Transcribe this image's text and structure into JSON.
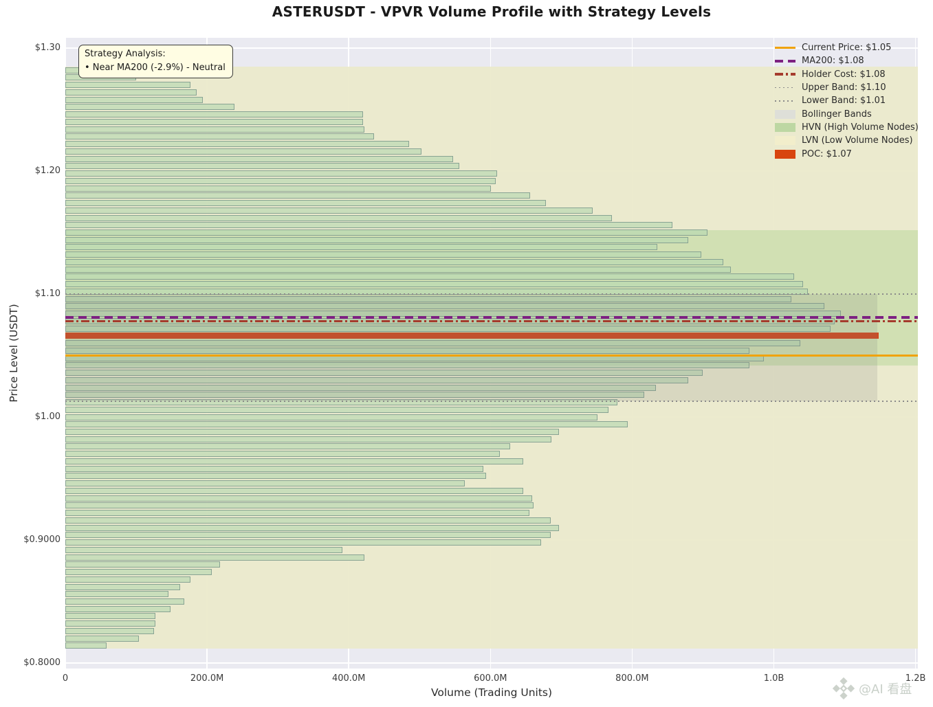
{
  "title": "ASTERUSDT - VPVR Volume Profile with Strategy Levels",
  "axes": {
    "xlabel": "Volume (Trading Units)",
    "ylabel": "Price Level (USDT)",
    "x_ticks": [
      {
        "label": "0",
        "value_M": 0
      },
      {
        "label": "200.0M",
        "value_M": 200
      },
      {
        "label": "400.0M",
        "value_M": 400
      },
      {
        "label": "600.0M",
        "value_M": 600
      },
      {
        "label": "800.0M",
        "value_M": 800
      },
      {
        "label": "1.0B",
        "value_M": 1000
      },
      {
        "label": "1.2B",
        "value_M": 1200
      }
    ],
    "y_ticks": [
      {
        "label": "$1.30",
        "price": 1.3
      },
      {
        "label": "$1.20",
        "price": 1.2
      },
      {
        "label": "$1.10",
        "price": 1.1
      },
      {
        "label": "$1.00",
        "price": 1.0
      },
      {
        "label": "$0.9000",
        "price": 0.9
      },
      {
        "label": "$0.8000",
        "price": 0.8
      }
    ]
  },
  "annotation_box": {
    "line1": "Strategy Analysis:",
    "line2": "• Near MA200 (-2.9%) - Neutral"
  },
  "legend": [
    {
      "label": "Current Price: $1.05",
      "swatch": "line-solid",
      "color": "#f0a30a"
    },
    {
      "label": "MA200: $1.08",
      "swatch": "line-dashed",
      "color": "#7d2182"
    },
    {
      "label": "Holder Cost: $1.08",
      "swatch": "line-dashdot",
      "color": "#a53b2d"
    },
    {
      "label": "Upper Band: $1.10",
      "swatch": "line-dotted",
      "color": "#8a8a8a"
    },
    {
      "label": "Lower Band: $1.01",
      "swatch": "line-dotted",
      "color": "#8a8a8a"
    },
    {
      "label": "Bollinger Bands",
      "swatch": "patch",
      "color": "#dedfd8"
    },
    {
      "label": "HVN (High Volume Nodes)",
      "swatch": "patch",
      "color": "#bdd7a3"
    },
    {
      "label": "LVN (Low Volume Nodes)",
      "swatch": "patch",
      "color": "#f2eecb"
    },
    {
      "label": "POC: $1.07",
      "swatch": "patch",
      "color": "#d8450f"
    }
  ],
  "levels": {
    "current_price": {
      "name": "current-price-line",
      "price": 1.05,
      "color": "#f0a30a",
      "style": "solid",
      "thickness": 3.5
    },
    "ma200": {
      "name": "ma200-line",
      "price": 1.081,
      "color": "#7d2182",
      "style": "dashed",
      "thickness": 3.5
    },
    "holder_cost": {
      "name": "holder-cost-line",
      "price": 1.078,
      "color": "#a53b2d",
      "style": "dashdot",
      "thickness": 2.6
    },
    "upper_band": {
      "name": "upper-band-line",
      "price": 1.1,
      "color": "#8a8a8a",
      "style": "dotted",
      "thickness": 1.8
    },
    "lower_band": {
      "name": "lower-band-line",
      "price": 1.013,
      "color": "#8a8a8a",
      "style": "dotted",
      "thickness": 1.8
    }
  },
  "zones": {
    "lvn": {
      "price_top": 1.285,
      "price_bottom": 0.8115,
      "color": "#ebeacb",
      "opacity": 0.95
    },
    "hvn": {
      "price_top": 1.152,
      "price_bottom": 1.042,
      "color": "#cfdfb2",
      "opacity": 0.97
    },
    "bollinger": {
      "price_top": 1.1,
      "price_bottom": 1.013,
      "x_max_M": 1146,
      "color": "rgba(125,125,125,0.17)"
    }
  },
  "chart_data": {
    "type": "bar",
    "orientation": "horizontal",
    "title": "ASTERUSDT - VPVR Volume Profile with Strategy Levels",
    "xlabel": "Volume (Trading Units)",
    "ylabel": "Price Level (USDT)",
    "xlim_M": [
      0,
      1203
    ],
    "ylim": [
      0.795,
      1.308
    ],
    "grid": true,
    "legend_position": "upper right",
    "bin_size": 0.006,
    "poc": {
      "price": 1.066,
      "volume_M": 1148
    },
    "bars": [
      {
        "price": 1.282,
        "volume_M": 104
      },
      {
        "price": 1.276,
        "volume_M": 100
      },
      {
        "price": 1.27,
        "volume_M": 177
      },
      {
        "price": 1.264,
        "volume_M": 185
      },
      {
        "price": 1.258,
        "volume_M": 194
      },
      {
        "price": 1.252,
        "volume_M": 239
      },
      {
        "price": 1.246,
        "volume_M": 420
      },
      {
        "price": 1.24,
        "volume_M": 420
      },
      {
        "price": 1.234,
        "volume_M": 422
      },
      {
        "price": 1.228,
        "volume_M": 436
      },
      {
        "price": 1.222,
        "volume_M": 485
      },
      {
        "price": 1.216,
        "volume_M": 503
      },
      {
        "price": 1.21,
        "volume_M": 547
      },
      {
        "price": 1.204,
        "volume_M": 556
      },
      {
        "price": 1.198,
        "volume_M": 609
      },
      {
        "price": 1.192,
        "volume_M": 607
      },
      {
        "price": 1.186,
        "volume_M": 601
      },
      {
        "price": 1.18,
        "volume_M": 656
      },
      {
        "price": 1.174,
        "volume_M": 678
      },
      {
        "price": 1.168,
        "volume_M": 744
      },
      {
        "price": 1.162,
        "volume_M": 771
      },
      {
        "price": 1.156,
        "volume_M": 857
      },
      {
        "price": 1.15,
        "volume_M": 906
      },
      {
        "price": 1.144,
        "volume_M": 879
      },
      {
        "price": 1.138,
        "volume_M": 836
      },
      {
        "price": 1.132,
        "volume_M": 898
      },
      {
        "price": 1.126,
        "volume_M": 929
      },
      {
        "price": 1.12,
        "volume_M": 939
      },
      {
        "price": 1.114,
        "volume_M": 1029
      },
      {
        "price": 1.108,
        "volume_M": 1041
      },
      {
        "price": 1.102,
        "volume_M": 1048
      },
      {
        "price": 1.096,
        "volume_M": 1025
      },
      {
        "price": 1.09,
        "volume_M": 1071
      },
      {
        "price": 1.084,
        "volume_M": 1095
      },
      {
        "price": 1.078,
        "volume_M": 1086
      },
      {
        "price": 1.072,
        "volume_M": 1080
      },
      {
        "price": 1.066,
        "volume_M": 1148
      },
      {
        "price": 1.06,
        "volume_M": 1037
      },
      {
        "price": 1.054,
        "volume_M": 966
      },
      {
        "price": 1.048,
        "volume_M": 986
      },
      {
        "price": 1.042,
        "volume_M": 966
      },
      {
        "price": 1.036,
        "volume_M": 900
      },
      {
        "price": 1.03,
        "volume_M": 879
      },
      {
        "price": 1.024,
        "volume_M": 834
      },
      {
        "price": 1.018,
        "volume_M": 817
      },
      {
        "price": 1.012,
        "volume_M": 779
      },
      {
        "price": 1.006,
        "volume_M": 767
      },
      {
        "price": 1.0,
        "volume_M": 751
      },
      {
        "price": 0.994,
        "volume_M": 794
      },
      {
        "price": 0.988,
        "volume_M": 697
      },
      {
        "price": 0.982,
        "volume_M": 686
      },
      {
        "price": 0.976,
        "volume_M": 628
      },
      {
        "price": 0.97,
        "volume_M": 613
      },
      {
        "price": 0.964,
        "volume_M": 646
      },
      {
        "price": 0.958,
        "volume_M": 590
      },
      {
        "price": 0.952,
        "volume_M": 594
      },
      {
        "price": 0.946,
        "volume_M": 564
      },
      {
        "price": 0.94,
        "volume_M": 646
      },
      {
        "price": 0.934,
        "volume_M": 659
      },
      {
        "price": 0.928,
        "volume_M": 661
      },
      {
        "price": 0.922,
        "volume_M": 655
      },
      {
        "price": 0.916,
        "volume_M": 685
      },
      {
        "price": 0.91,
        "volume_M": 697
      },
      {
        "price": 0.904,
        "volume_M": 685
      },
      {
        "price": 0.898,
        "volume_M": 672
      },
      {
        "price": 0.892,
        "volume_M": 391
      },
      {
        "price": 0.886,
        "volume_M": 422
      },
      {
        "price": 0.88,
        "volume_M": 218
      },
      {
        "price": 0.874,
        "volume_M": 207
      },
      {
        "price": 0.868,
        "volume_M": 177
      },
      {
        "price": 0.862,
        "volume_M": 162
      },
      {
        "price": 0.856,
        "volume_M": 146
      },
      {
        "price": 0.85,
        "volume_M": 168
      },
      {
        "price": 0.844,
        "volume_M": 148
      },
      {
        "price": 0.838,
        "volume_M": 127
      },
      {
        "price": 0.832,
        "volume_M": 127
      },
      {
        "price": 0.826,
        "volume_M": 125
      },
      {
        "price": 0.82,
        "volume_M": 104
      },
      {
        "price": 0.814,
        "volume_M": 58
      }
    ]
  },
  "bar_style": {
    "fill": "rgba(183,216,177,0.66)",
    "edge": "rgba(120,148,138,0.8)",
    "poc_color": "#d0491e"
  },
  "watermark": {
    "text": "@AI 看盘"
  }
}
